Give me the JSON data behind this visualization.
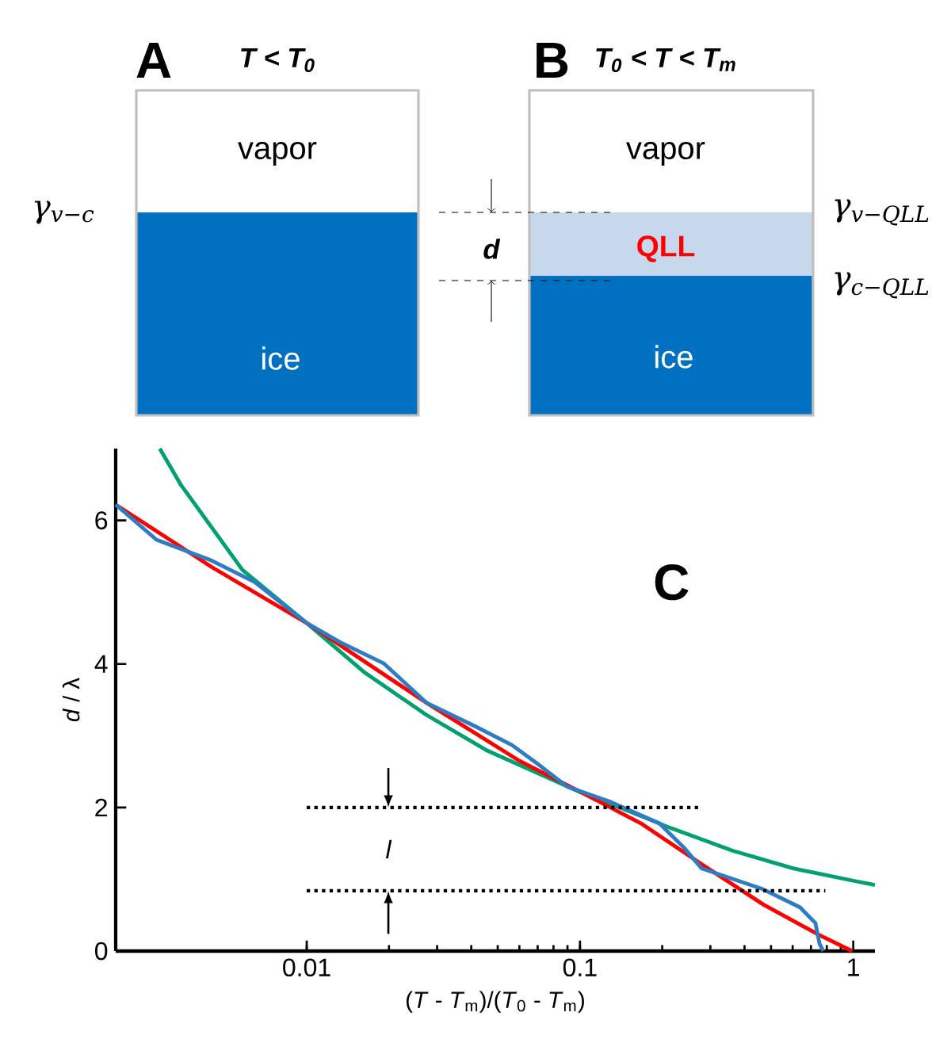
{
  "chart_data": [
    {
      "type": "other",
      "annotations": [
        "A",
        "T < T$_{0}$",
        "vapor",
        "ice",
        "γ$_{v−c}$",
        "d",
        "B",
        "T$_{0}$ < T < T$_{m}$",
        "vapor",
        "QLL",
        "ice",
        "γ$_{v−QLL}$",
        "γ$_{c−QLL}$"
      ]
    },
    {
      "type": "line",
      "title": "C",
      "xlabel": "(*T* - *T*$_{m}$)/(*T*$_{0}$ - *T*$_{m}$)",
      "ylabel": "*d* / λ",
      "log": "x",
      "xlim": [
        0.002,
        1.2
      ],
      "ylim": [
        0,
        7
      ],
      "xticks": [
        0.01,
        0.1,
        1
      ],
      "yticks": [
        0,
        2,
        4,
        6
      ],
      "series": [
        {
          "color": "#00a070",
          "x": [
            0.0029,
            0.00347,
            0.00582,
            0.01,
            0.0163,
            0.0274,
            0.0459,
            0.0995,
            0.1356,
            0.216,
            0.361,
            0.606,
            1.0,
            1.2
          ],
          "values": [
            7.0,
            6.49,
            5.31,
            4.57,
            3.88,
            3.29,
            2.79,
            2.22,
            2.02,
            1.71,
            1.4,
            1.15,
            0.98,
            0.92
          ]
        },
        {
          "color": "#ff0000",
          "x": [
            0.002,
            0.00449,
            0.01,
            0.0274,
            0.0594,
            0.1,
            0.167,
            0.279,
            0.468,
            0.745,
            0.99
          ],
          "values": [
            6.22,
            5.35,
            4.57,
            3.46,
            2.66,
            2.22,
            1.78,
            1.21,
            0.65,
            0.23,
            0
          ]
        },
        {
          "color": "#2e7cc4",
          "x": [
            0.002,
            0.00282,
            0.00449,
            0.00645,
            0.01,
            0.0133,
            0.0191,
            0.0274,
            0.0414,
            0.0564,
            0.0693,
            0.0898,
            0.129,
            0.195,
            0.239,
            0.279,
            0.468,
            0.638,
            0.727,
            0.753,
            0.777
          ],
          "values": [
            6.22,
            5.73,
            5.44,
            5.14,
            4.57,
            4.3,
            4.01,
            3.46,
            3.13,
            2.87,
            2.62,
            2.29,
            2.08,
            1.78,
            1.45,
            1.15,
            0.86,
            0.61,
            0.39,
            0.1,
            0
          ]
        },
        {
          "color": "#000000",
          "line_style": "dotted",
          "x": [
            0.01,
            0.272
          ],
          "values": [
            2.0,
            2.0
          ]
        },
        {
          "color": "#000000",
          "line_style": "dotted",
          "x": [
            0.01,
            0.79
          ],
          "values": [
            0.84,
            0.84
          ]
        }
      ],
      "annotations": [
        "l"
      ]
    }
  ]
}
